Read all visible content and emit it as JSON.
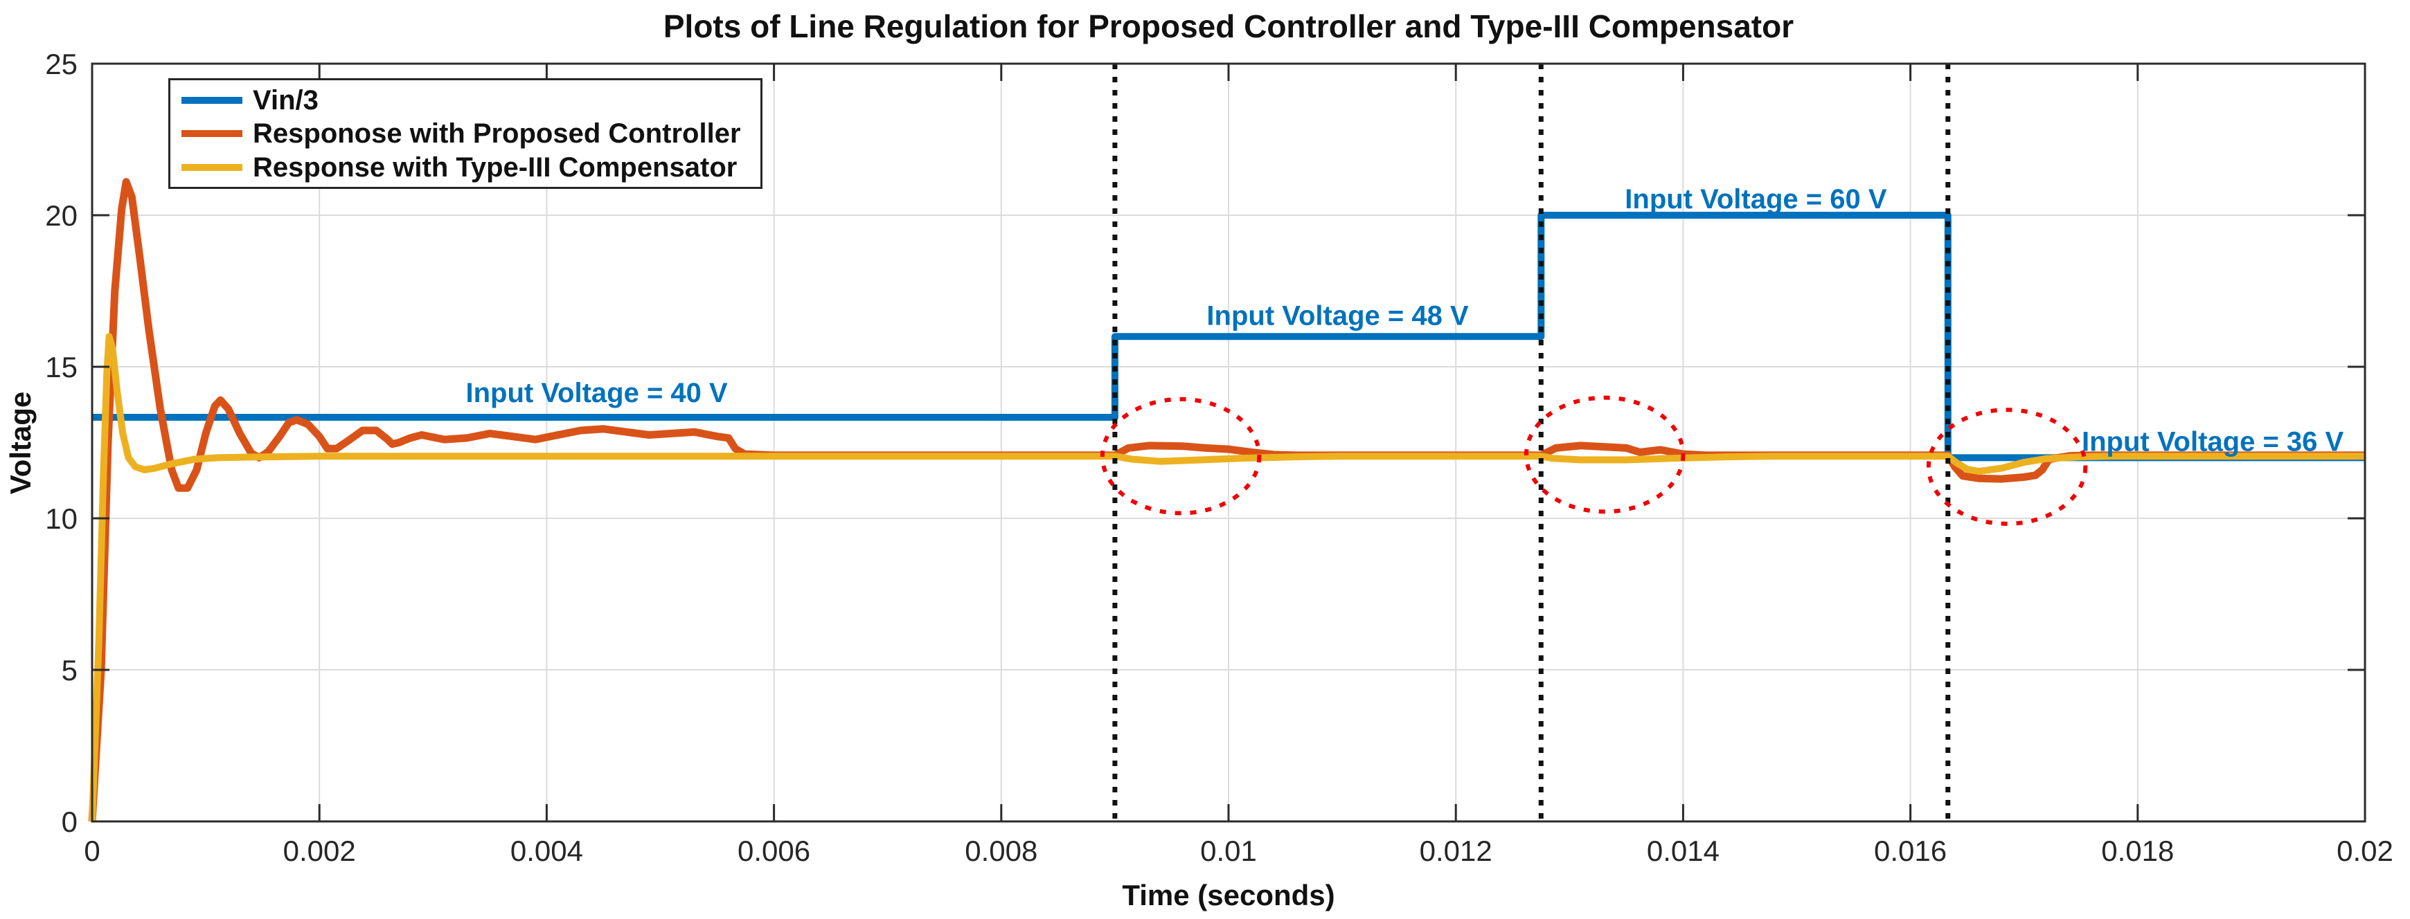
{
  "figure": {
    "background": "#ffffff"
  },
  "chart_data": {
    "type": "line",
    "title": "Plots of Line Regulation for Proposed Controller and Type-III Compensator",
    "xlabel": "Time (seconds)",
    "ylabel": "Voltage",
    "xlim": [
      0,
      0.02
    ],
    "ylim": [
      0,
      25
    ],
    "grid": true,
    "box": true,
    "legend_position": "top-left",
    "grid_color": "#dbdbdb",
    "axis_color": "#2b2b2b",
    "x_ticks": {
      "values": [
        0,
        0.002,
        0.004,
        0.006,
        0.008,
        0.01,
        0.012,
        0.014,
        0.016,
        0.018,
        0.02
      ],
      "labels": [
        "0",
        "0.002",
        "0.004",
        "0.006",
        "0.008",
        "0.01",
        "0.012",
        "0.014",
        "0.016",
        "0.018",
        "0.02"
      ]
    },
    "y_ticks": {
      "values": [
        0,
        5,
        10,
        15,
        20,
        25
      ],
      "labels": [
        "0",
        "5",
        "10",
        "15",
        "20",
        "25"
      ]
    },
    "series": [
      {
        "name": "Vin/3",
        "color": "#0072BD",
        "width": 10,
        "points": [
          [
            0,
            13.333
          ],
          [
            0.009,
            13.333
          ],
          [
            0.009,
            16
          ],
          [
            0.01275,
            16
          ],
          [
            0.01275,
            20
          ],
          [
            0.01633,
            20
          ],
          [
            0.01633,
            12
          ],
          [
            0.02,
            12
          ]
        ]
      },
      {
        "name": "Responose with Proposed Controller",
        "color": "#D95319",
        "width": 11,
        "points": [
          [
            0,
            0
          ],
          [
            8e-05,
            5
          ],
          [
            0.00014,
            12.5
          ],
          [
            0.0002,
            17.5
          ],
          [
            0.00026,
            20.2
          ],
          [
            0.0003,
            21.1
          ],
          [
            0.00035,
            20.6
          ],
          [
            0.00042,
            18.6
          ],
          [
            0.0005,
            16.2
          ],
          [
            0.0006,
            13.6
          ],
          [
            0.0007,
            11.6
          ],
          [
            0.00076,
            11.0
          ],
          [
            0.00084,
            11.0
          ],
          [
            0.00092,
            11.6
          ],
          [
            0.001,
            12.8
          ],
          [
            0.00108,
            13.7
          ],
          [
            0.00113,
            13.9
          ],
          [
            0.0012,
            13.6
          ],
          [
            0.0013,
            12.8
          ],
          [
            0.0014,
            12.15
          ],
          [
            0.00147,
            12.0
          ],
          [
            0.00155,
            12.2
          ],
          [
            0.00165,
            12.7
          ],
          [
            0.00173,
            13.15
          ],
          [
            0.0018,
            13.25
          ],
          [
            0.0019,
            13.1
          ],
          [
            0.002,
            12.7
          ],
          [
            0.00207,
            12.3
          ],
          [
            0.00215,
            12.3
          ],
          [
            0.00225,
            12.55
          ],
          [
            0.00238,
            12.9
          ],
          [
            0.0025,
            12.9
          ],
          [
            0.0026,
            12.6
          ],
          [
            0.00264,
            12.45
          ],
          [
            0.0027,
            12.5
          ],
          [
            0.0028,
            12.65
          ],
          [
            0.0029,
            12.75
          ],
          [
            0.0031,
            12.6
          ],
          [
            0.0033,
            12.65
          ],
          [
            0.0035,
            12.8
          ],
          [
            0.0037,
            12.7
          ],
          [
            0.0039,
            12.6
          ],
          [
            0.0041,
            12.75
          ],
          [
            0.0043,
            12.9
          ],
          [
            0.0045,
            12.95
          ],
          [
            0.0047,
            12.85
          ],
          [
            0.0049,
            12.75
          ],
          [
            0.0051,
            12.8
          ],
          [
            0.0053,
            12.85
          ],
          [
            0.0055,
            12.7
          ],
          [
            0.0056,
            12.65
          ],
          [
            0.00566,
            12.3
          ],
          [
            0.00574,
            12.12
          ],
          [
            0.006,
            12.08
          ],
          [
            0.009,
            12.08
          ],
          [
            0.00912,
            12.32
          ],
          [
            0.0093,
            12.4
          ],
          [
            0.0096,
            12.38
          ],
          [
            0.0098,
            12.32
          ],
          [
            0.01,
            12.28
          ],
          [
            0.0102,
            12.18
          ],
          [
            0.0104,
            12.1
          ],
          [
            0.0106,
            12.08
          ],
          [
            0.01275,
            12.08
          ],
          [
            0.01288,
            12.32
          ],
          [
            0.0131,
            12.4
          ],
          [
            0.0133,
            12.36
          ],
          [
            0.0135,
            12.32
          ],
          [
            0.01362,
            12.18
          ],
          [
            0.0138,
            12.26
          ],
          [
            0.014,
            12.12
          ],
          [
            0.0142,
            12.08
          ],
          [
            0.01633,
            12.08
          ],
          [
            0.01639,
            11.7
          ],
          [
            0.01646,
            11.4
          ],
          [
            0.0166,
            11.32
          ],
          [
            0.0168,
            11.3
          ],
          [
            0.017,
            11.36
          ],
          [
            0.0171,
            11.42
          ],
          [
            0.01716,
            11.6
          ],
          [
            0.01722,
            11.95
          ],
          [
            0.0174,
            12.06
          ],
          [
            0.0176,
            12.08
          ],
          [
            0.02,
            12.08
          ]
        ]
      },
      {
        "name": "Response with Type-III Compensator",
        "color": "#EDB120",
        "width": 10,
        "points": [
          [
            0,
            0
          ],
          [
            6e-05,
            6
          ],
          [
            0.0001,
            11.5
          ],
          [
            0.00013,
            14.8
          ],
          [
            0.00015,
            16.0
          ],
          [
            0.00018,
            15.6
          ],
          [
            0.00022,
            14.2
          ],
          [
            0.00027,
            12.8
          ],
          [
            0.00032,
            12.0
          ],
          [
            0.00038,
            11.7
          ],
          [
            0.00046,
            11.6
          ],
          [
            0.00055,
            11.65
          ],
          [
            0.0007,
            11.8
          ],
          [
            0.0009,
            11.95
          ],
          [
            0.0011,
            12.0
          ],
          [
            0.0014,
            12.02
          ],
          [
            0.002,
            12.05
          ],
          [
            0.009,
            12.05
          ],
          [
            0.00915,
            11.95
          ],
          [
            0.0094,
            11.88
          ],
          [
            0.0097,
            11.92
          ],
          [
            0.0101,
            11.98
          ],
          [
            0.0106,
            12.03
          ],
          [
            0.011,
            12.05
          ],
          [
            0.01275,
            12.05
          ],
          [
            0.01285,
            11.98
          ],
          [
            0.0131,
            11.93
          ],
          [
            0.0135,
            11.93
          ],
          [
            0.0139,
            11.98
          ],
          [
            0.0144,
            12.03
          ],
          [
            0.0148,
            12.05
          ],
          [
            0.01633,
            12.05
          ],
          [
            0.01641,
            11.82
          ],
          [
            0.0165,
            11.62
          ],
          [
            0.0166,
            11.55
          ],
          [
            0.0168,
            11.65
          ],
          [
            0.017,
            11.85
          ],
          [
            0.0172,
            11.97
          ],
          [
            0.0175,
            12.03
          ],
          [
            0.0178,
            12.05
          ],
          [
            0.02,
            12.05
          ]
        ]
      }
    ],
    "step_lines": {
      "color": "#111111",
      "style": "dotted",
      "times": [
        0.009,
        0.01275,
        0.01633
      ]
    },
    "highlight_ellipses": {
      "color": "#F00000",
      "style": "dotted",
      "items": [
        {
          "t": 0.00958,
          "v": 12.05,
          "rt": 0.00069,
          "rv": 1.88
        },
        {
          "t": 0.01331,
          "v": 12.1,
          "rt": 0.00069,
          "rv": 1.88
        },
        {
          "t": 0.01685,
          "v": 11.7,
          "rt": 0.00069,
          "rv": 1.88
        }
      ]
    },
    "annotations": [
      {
        "label": "Input Voltage = 40 V",
        "t": 0.00444,
        "v": 14.15
      },
      {
        "label": "Input Voltage = 48 V",
        "t": 0.01096,
        "v": 16.7
      },
      {
        "label": "Input Voltage = 60 V",
        "t": 0.01464,
        "v": 20.55
      },
      {
        "label": "Input Voltage = 36 V",
        "t": 0.01866,
        "v": 12.55
      }
    ]
  }
}
